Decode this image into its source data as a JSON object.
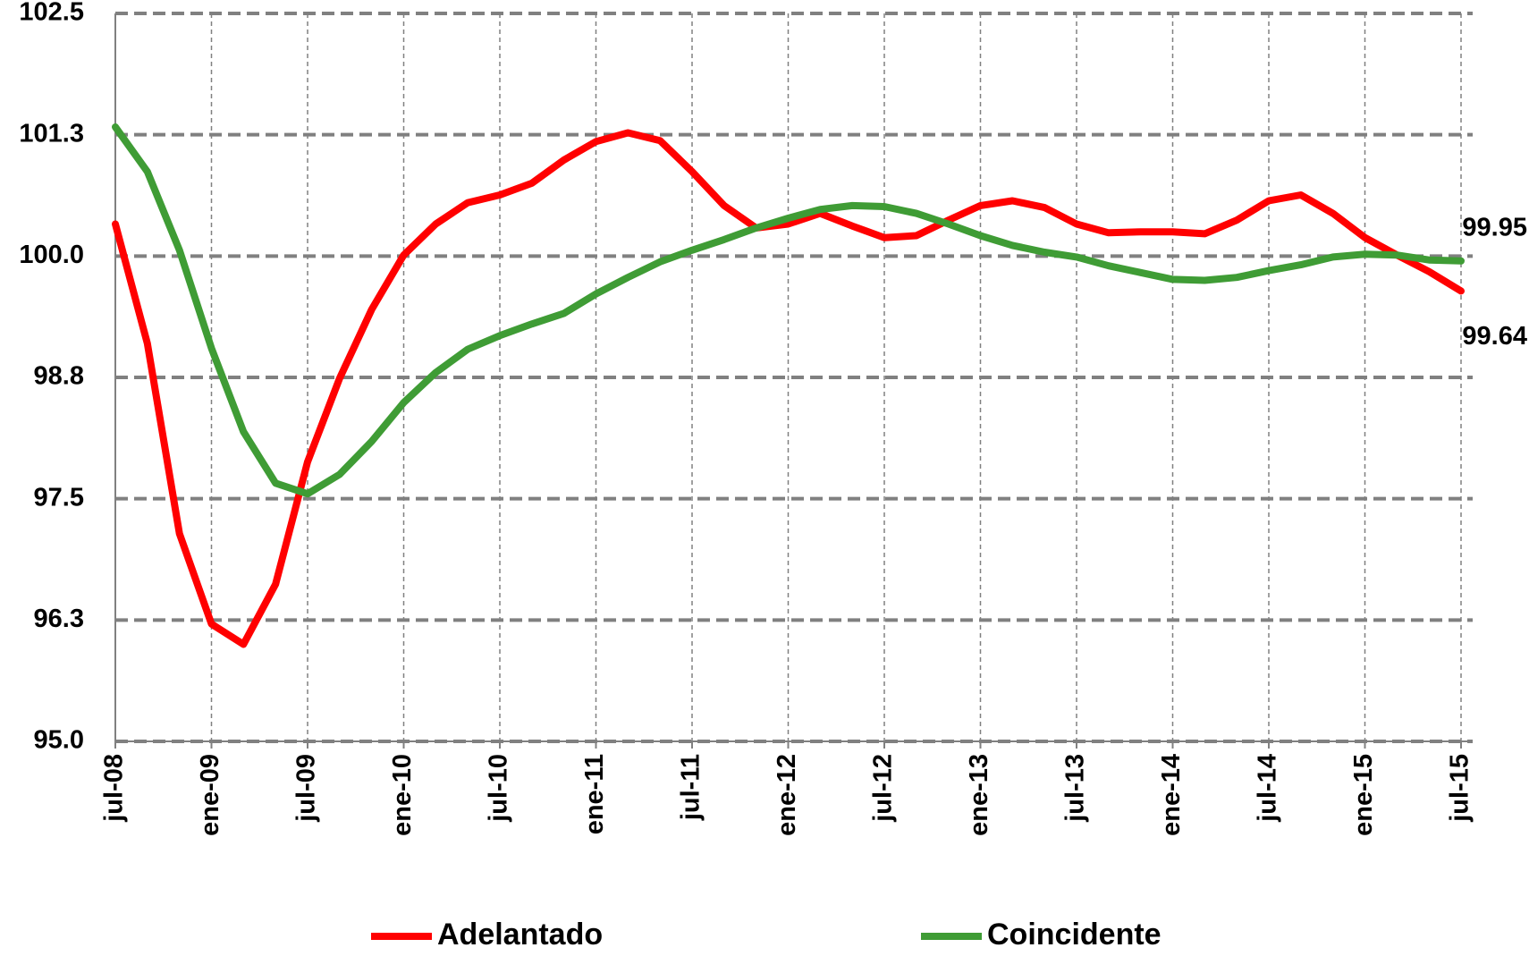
{
  "chart_data": {
    "type": "line",
    "categories": [
      "jul-08",
      null,
      null,
      "ene-09",
      null,
      null,
      "jul-09",
      null,
      null,
      "ene-10",
      null,
      null,
      "jul-10",
      null,
      null,
      "ene-11",
      null,
      null,
      "jul-11",
      null,
      null,
      "ene-12",
      null,
      null,
      "jul-12",
      null,
      null,
      "ene-13",
      null,
      null,
      "jul-13",
      null,
      null,
      "ene-14",
      null,
      null,
      "jul-14",
      null,
      null,
      "ene-15",
      null,
      null,
      "jul-15"
    ],
    "series": [
      {
        "name": "Adelantado",
        "color": "#ff0000",
        "values": [
          100.33,
          99.1,
          97.14,
          96.21,
          96.0,
          96.62,
          97.88,
          98.74,
          99.45,
          100.01,
          100.33,
          100.55,
          100.63,
          100.75,
          100.99,
          101.18,
          101.27,
          101.19,
          100.87,
          100.52,
          100.29,
          100.33,
          100.44,
          100.31,
          100.19,
          100.21,
          100.37,
          100.52,
          100.57,
          100.5,
          100.33,
          100.24,
          100.25,
          100.25,
          100.23,
          100.37,
          100.57,
          100.63,
          100.44,
          100.19,
          100.01,
          99.84,
          99.64
        ]
      },
      {
        "name": "Coincidente",
        "color": "#3f9c35",
        "values": [
          101.33,
          100.87,
          100.06,
          99.05,
          98.19,
          97.66,
          97.55,
          97.75,
          98.09,
          98.49,
          98.8,
          99.04,
          99.18,
          99.3,
          99.41,
          99.61,
          99.78,
          99.94,
          100.06,
          100.17,
          100.29,
          100.39,
          100.48,
          100.52,
          100.51,
          100.44,
          100.33,
          100.21,
          100.11,
          100.04,
          99.99,
          99.9,
          99.83,
          99.76,
          99.75,
          99.78,
          99.85,
          99.91,
          99.99,
          100.02,
          100.01,
          99.96,
          99.95
        ]
      }
    ],
    "ylim": [
      95,
      102.5
    ],
    "yticks": [
      {
        "value": 95,
        "label": "95.0"
      },
      {
        "value": 96.25,
        "label": "96.3"
      },
      97.5,
      {
        "value": 98.75,
        "label": "98.8"
      },
      {
        "value": 100,
        "label": "100.0"
      },
      {
        "value": 101.25,
        "label": "101.3"
      },
      102.5
    ],
    "grid": true,
    "data_labels": "last",
    "legend": "bottom"
  }
}
